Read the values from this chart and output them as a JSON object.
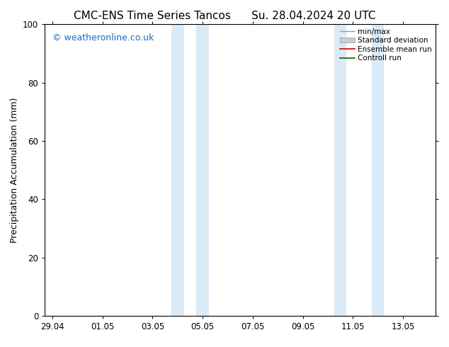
{
  "title_left": "CMC-ENS Time Series Tancos",
  "title_right": "Su. 28.04.2024 20 UTC",
  "ylabel": "Precipitation Accumulation (mm)",
  "watermark": "© weatheronline.co.uk",
  "watermark_color": "#1a6bbf",
  "ylim": [
    0,
    100
  ],
  "yticks": [
    0,
    20,
    40,
    60,
    80,
    100
  ],
  "xtick_labels": [
    "29.04",
    "01.05",
    "03.05",
    "05.05",
    "07.05",
    "09.05",
    "11.05",
    "13.05"
  ],
  "xtick_positions": [
    0,
    2,
    4,
    6,
    8,
    10,
    12,
    14
  ],
  "xlim": [
    -0.3,
    15.3
  ],
  "shaded_bands": [
    {
      "xmin": 4.75,
      "xmax": 5.25,
      "color": "#daeaf7"
    },
    {
      "xmin": 5.75,
      "xmax": 6.25,
      "color": "#daeaf7"
    },
    {
      "xmin": 11.25,
      "xmax": 11.75,
      "color": "#daeaf7"
    },
    {
      "xmin": 12.75,
      "xmax": 13.25,
      "color": "#daeaf7"
    }
  ],
  "background_color": "#ffffff",
  "title_fontsize": 11,
  "label_fontsize": 9,
  "tick_fontsize": 8.5,
  "legend_fontsize": 7.5
}
